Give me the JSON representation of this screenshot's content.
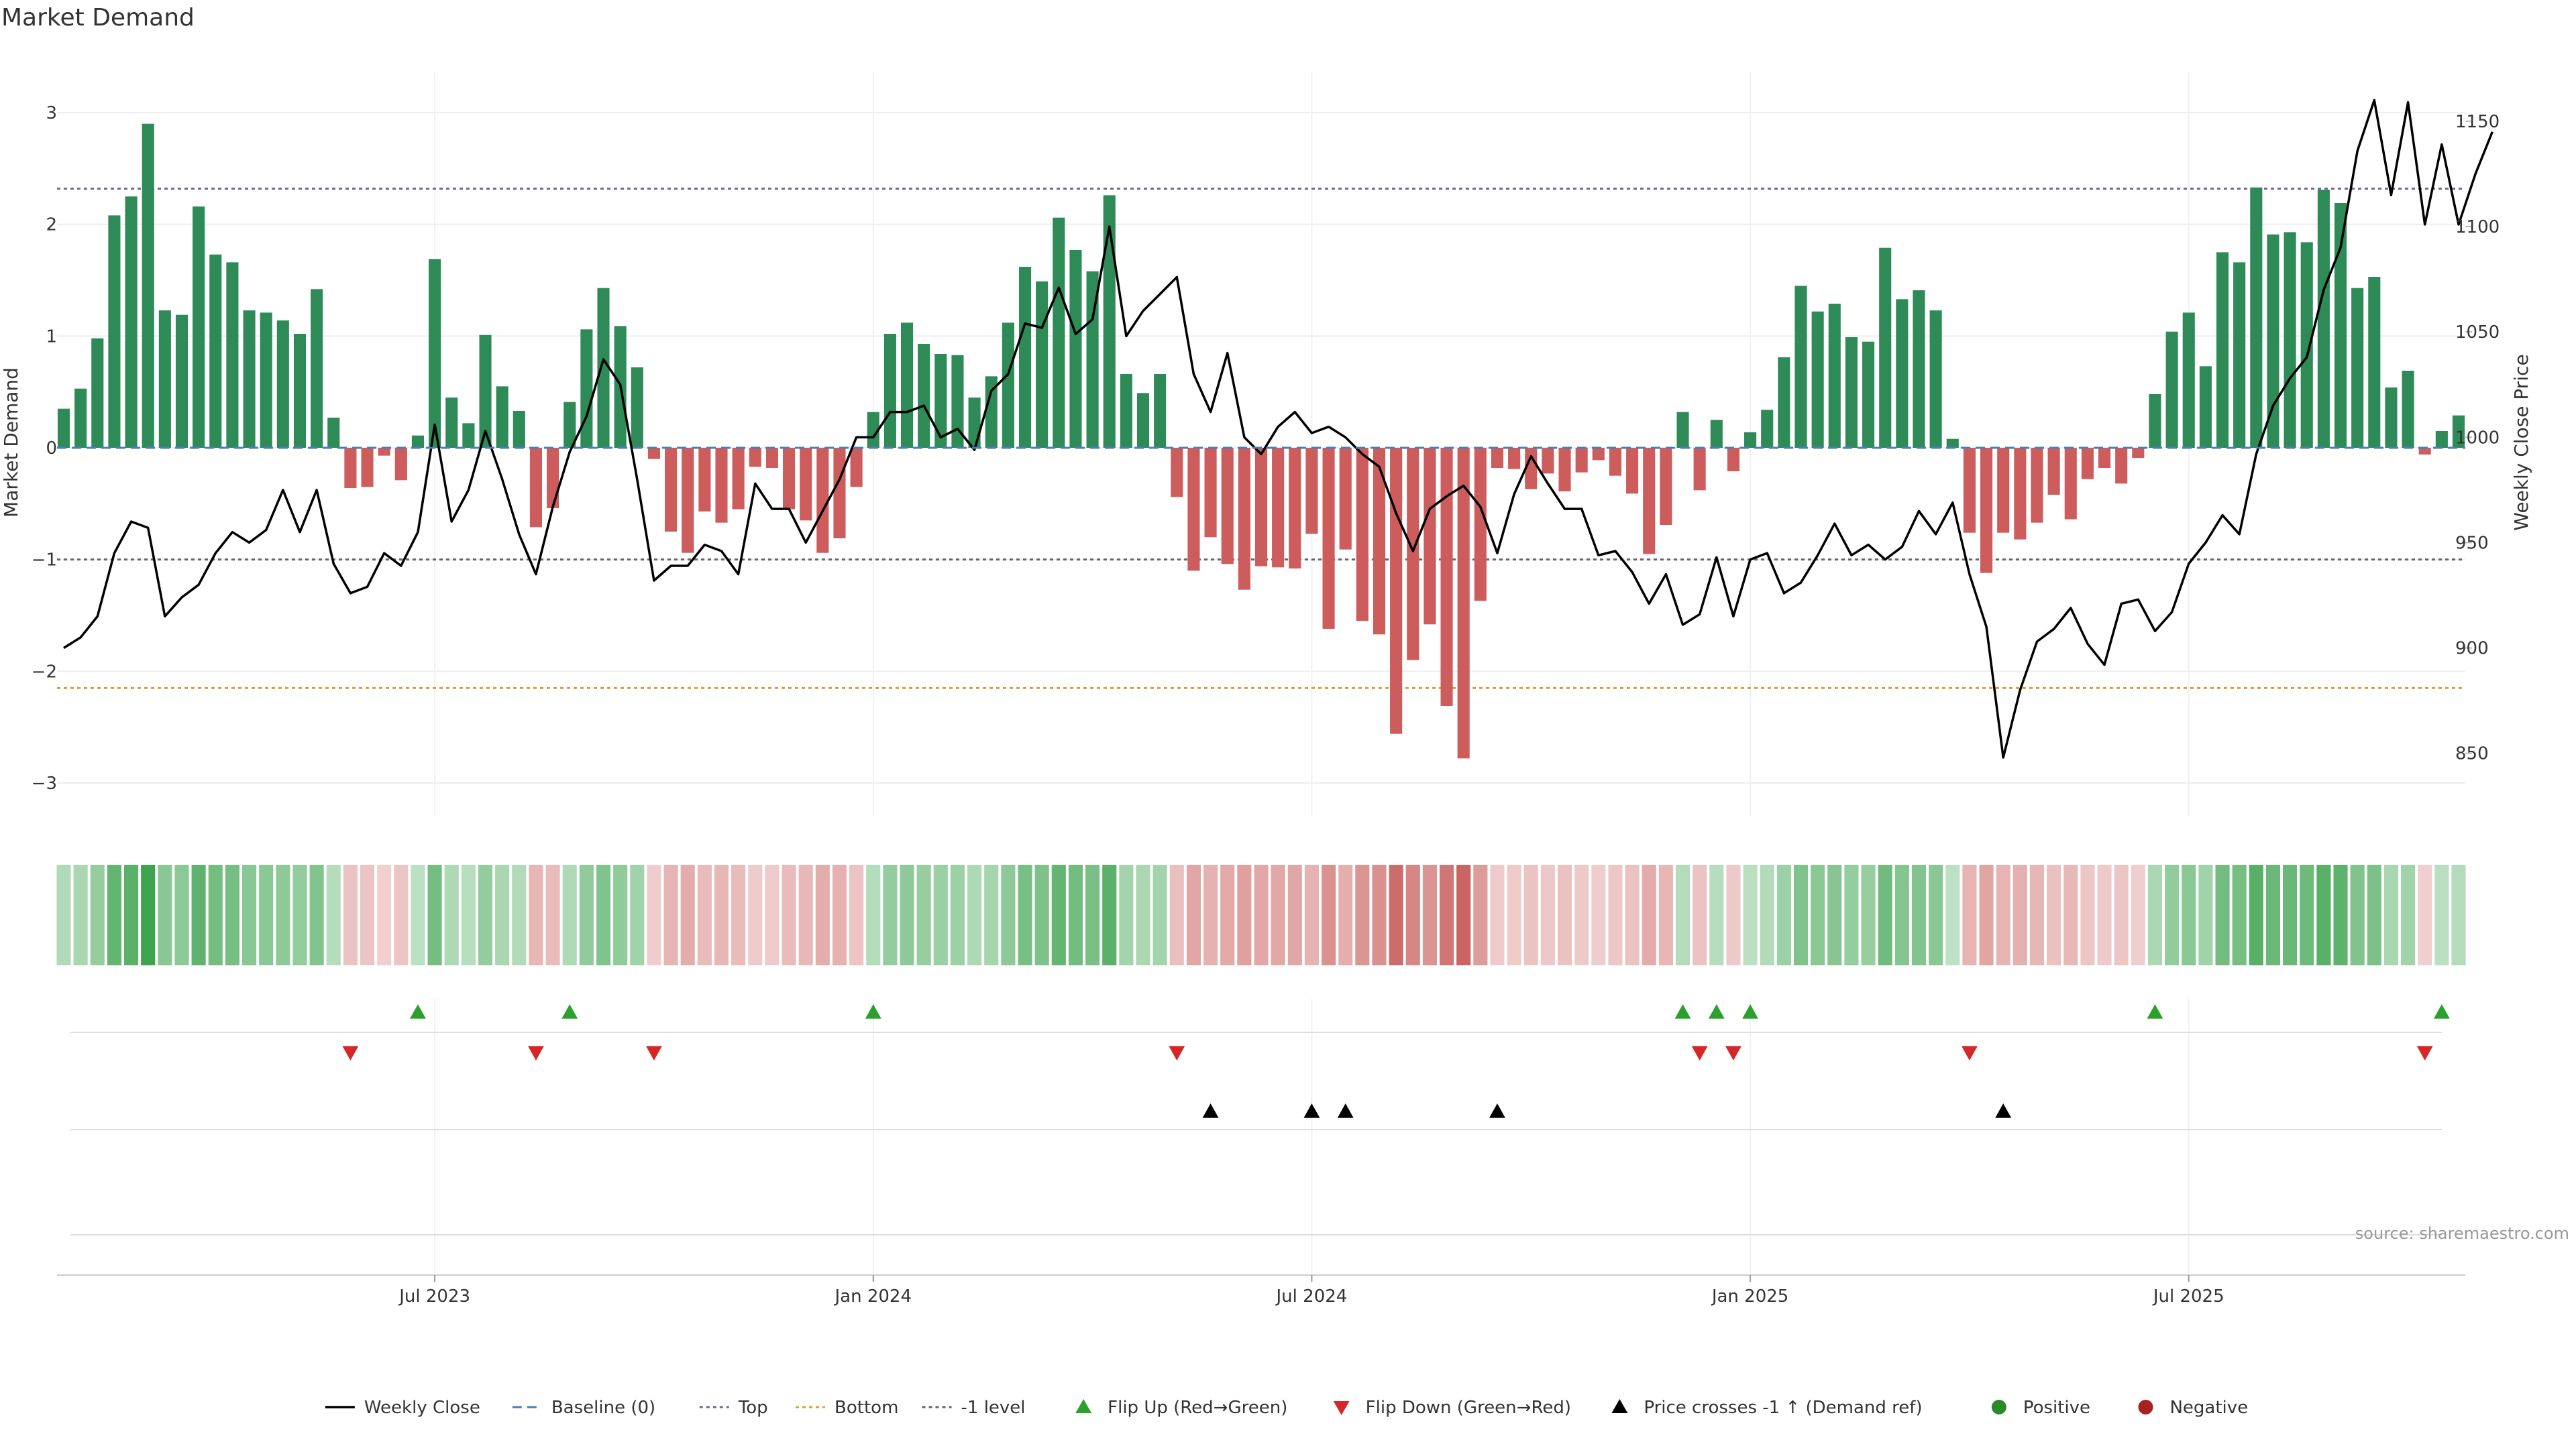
{
  "chart_data": {
    "type": "bar",
    "title": "Market Demand",
    "ylabel": "Market Demand",
    "ylabel_right": "Weekly Close Price",
    "ylim": [
      -3.3,
      3.3
    ],
    "ylim_right": [
      820,
      1170
    ],
    "y_ticks": [
      -3,
      -2,
      -1,
      0,
      1,
      2,
      3
    ],
    "y_tick_labels": [
      "−3",
      "−2",
      "−1",
      "0",
      "1",
      "2",
      "3"
    ],
    "y_right_ticks": [
      850,
      900,
      950,
      1000,
      1050,
      1100,
      1150
    ],
    "x_ticks": [
      {
        "index": 22,
        "label": "Jul 2023"
      },
      {
        "index": 48,
        "label": "Jan 2024"
      },
      {
        "index": 74,
        "label": "Jul 2024"
      },
      {
        "index": 100,
        "label": "Jan 2025"
      },
      {
        "index": 126,
        "label": "Jul 2025"
      }
    ],
    "reference_lines": {
      "baseline": 0,
      "top": 2.32,
      "bottom": -2.15,
      "minus_one": -1
    },
    "demand": [
      0.35,
      0.53,
      0.98,
      2.08,
      2.25,
      2.9,
      1.23,
      1.19,
      2.16,
      1.73,
      1.66,
      1.23,
      1.21,
      1.14,
      1.02,
      1.42,
      0.27,
      -0.36,
      -0.35,
      -0.07,
      -0.29,
      0.11,
      1.69,
      0.45,
      0.22,
      1.01,
      0.55,
      0.33,
      -0.71,
      -0.54,
      0.41,
      1.06,
      1.43,
      1.09,
      0.72,
      -0.1,
      -0.75,
      -0.94,
      -0.57,
      -0.67,
      -0.55,
      -0.17,
      -0.18,
      -0.55,
      -0.65,
      -0.94,
      -0.81,
      -0.35,
      0.32,
      1.02,
      1.12,
      0.93,
      0.84,
      0.83,
      0.45,
      0.64,
      1.12,
      1.62,
      1.49,
      2.06,
      1.77,
      1.58,
      2.26,
      0.66,
      0.49,
      0.66,
      -0.44,
      -1.1,
      -0.8,
      -1.04,
      -1.27,
      -1.06,
      -1.07,
      -1.08,
      -0.77,
      -1.62,
      -0.91,
      -1.55,
      -1.67,
      -2.56,
      -1.9,
      -1.58,
      -2.31,
      -2.78,
      -1.37,
      -0.18,
      -0.19,
      -0.37,
      -0.23,
      -0.39,
      -0.22,
      -0.11,
      -0.25,
      -0.41,
      -0.95,
      -0.69,
      0.32,
      -0.38,
      0.25,
      -0.21,
      0.14,
      0.34,
      0.81,
      1.45,
      1.22,
      1.29,
      0.99,
      0.95,
      1.79,
      1.33,
      1.41,
      1.23,
      0.08,
      -0.76,
      -1.12,
      -0.76,
      -0.82,
      -0.67,
      -0.42,
      -0.64,
      -0.28,
      -0.18,
      -0.32,
      -0.09,
      0.48,
      1.04,
      1.21,
      0.73,
      1.75,
      1.66,
      2.33,
      1.91,
      1.93,
      1.84,
      2.31,
      2.19,
      1.43,
      1.53,
      0.54,
      0.69,
      -0.06,
      0.15,
      0.29
    ],
    "close": [
      900,
      905,
      915,
      945,
      960,
      957,
      915,
      924,
      930,
      945,
      955,
      950,
      956,
      975,
      955,
      975,
      940,
      926,
      929,
      945,
      939,
      955,
      1006,
      960,
      975,
      1003,
      980,
      954,
      935,
      967,
      993,
      1010,
      1037,
      1025,
      980,
      932,
      939,
      939,
      949,
      946,
      935,
      978,
      966,
      966,
      950,
      965,
      980,
      1000,
      1000,
      1012,
      1012,
      1015,
      1000,
      1004,
      994,
      1022,
      1030,
      1054,
      1052,
      1071,
      1049,
      1056,
      1100,
      1048,
      1060,
      1068,
      1076,
      1030,
      1012,
      1040,
      1000,
      992,
      1005,
      1012,
      1002,
      1005,
      1000,
      992,
      986,
      964,
      946,
      966,
      972,
      977,
      967,
      945,
      973,
      991,
      978,
      966,
      966,
      944,
      946,
      936,
      921,
      935,
      911,
      916,
      943,
      915,
      942,
      945,
      926,
      931,
      944,
      959,
      944,
      949,
      942,
      948,
      965,
      954,
      969,
      935,
      910,
      848,
      880,
      903,
      909,
      919,
      902,
      892,
      921,
      923,
      908,
      917,
      940,
      950,
      963,
      954,
      992,
      1015,
      1028,
      1038,
      1070,
      1090,
      1136,
      1160,
      1115,
      1159,
      1101,
      1139,
      1101,
      1125,
      1145
    ],
    "legend": [
      {
        "label": "Weekly Close",
        "symbol": "line"
      },
      {
        "label": "Baseline (0)",
        "symbol": "dash"
      },
      {
        "label": "Top",
        "symbol": "dot-blue"
      },
      {
        "label": "Bottom",
        "symbol": "dot-orange"
      },
      {
        "label": "-1 level",
        "symbol": "dot-gray"
      },
      {
        "label": "Flip Up (Red→Green)",
        "symbol": "tri-up-green"
      },
      {
        "label": "Flip Down (Green→Red)",
        "symbol": "tri-down-red"
      },
      {
        "label": "Price crosses -1 ↑ (Demand ref)",
        "symbol": "tri-up-black"
      },
      {
        "label": "Positive",
        "symbol": "circle-green"
      },
      {
        "label": "Negative",
        "symbol": "circle-red"
      }
    ],
    "legend_position": "bottom-center",
    "grid": true
  },
  "colors": {
    "positive": "#2e8b57",
    "negative": "#cd5c5c",
    "line": "#000000",
    "top": "#6a6a9a",
    "bottom": "#d9a030",
    "minus_one": "#666666",
    "flip_up": "#2ca02c",
    "flip_down": "#d62728",
    "heat_pos": "#3ea34f",
    "heat_neg": "#c8605d",
    "circle_pos": "#2a8a2a",
    "circle_neg": "#a82020"
  },
  "source": "source: sharemaestro.com"
}
